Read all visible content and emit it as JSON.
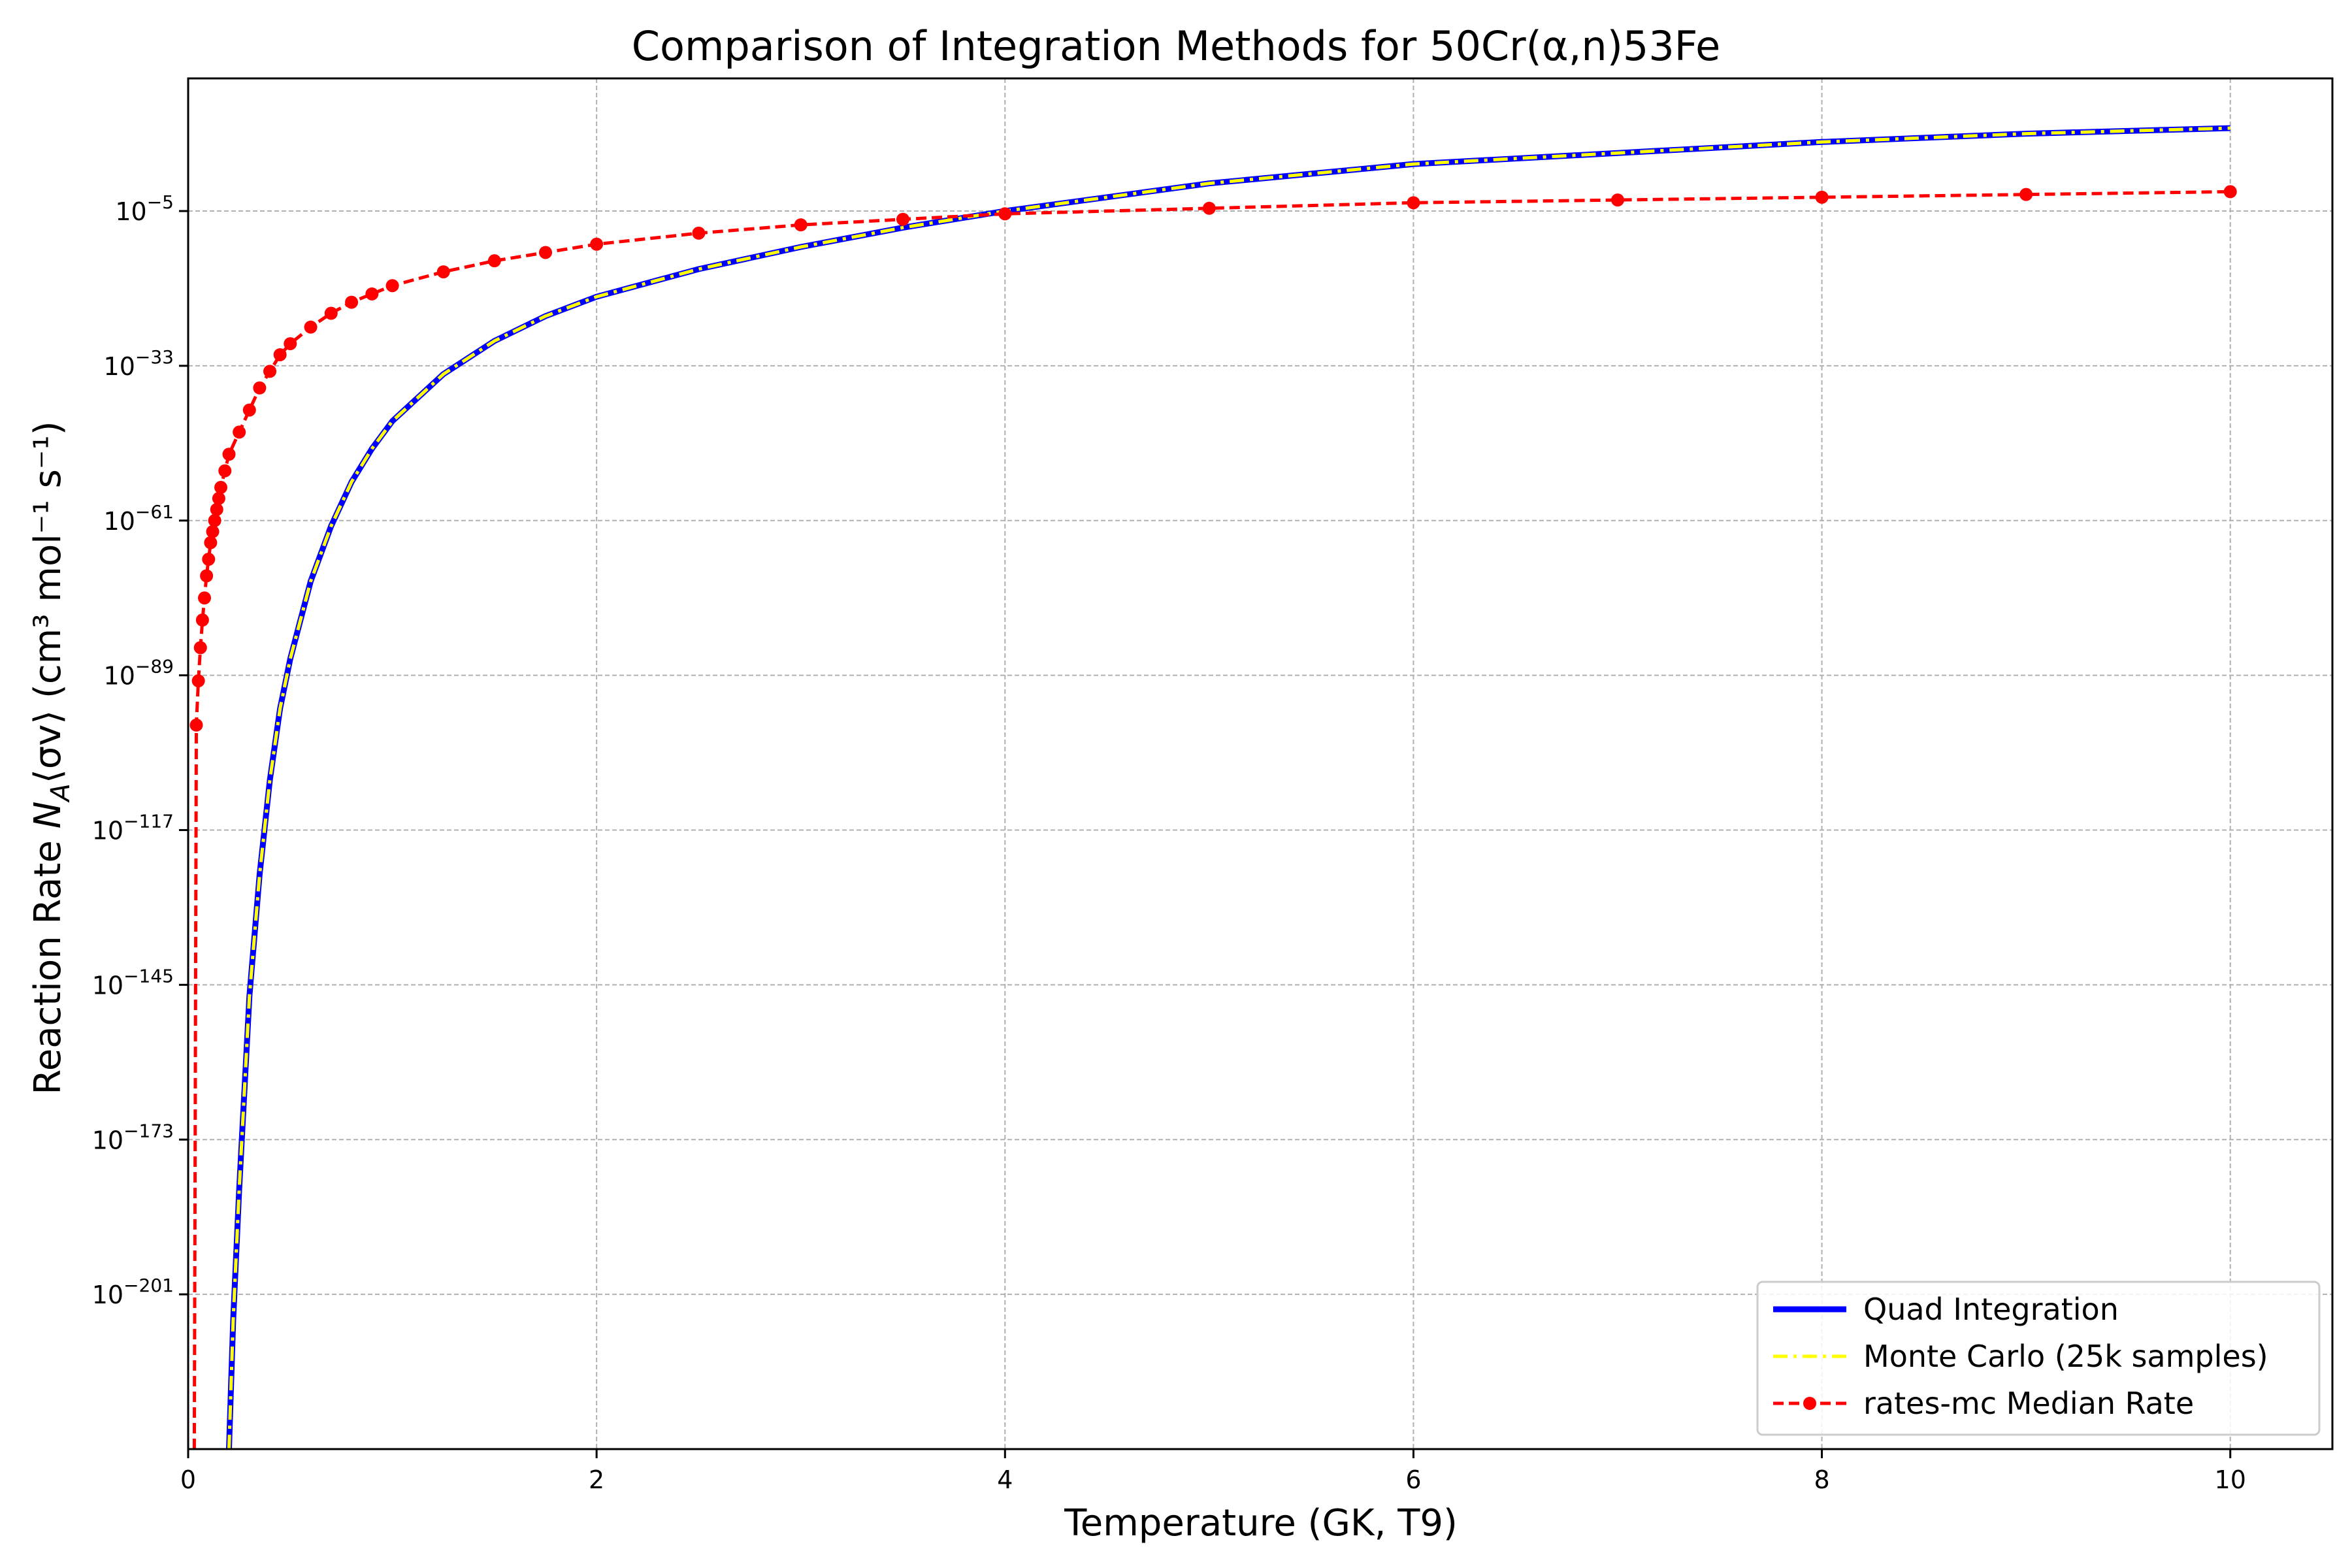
{
  "chart_data": {
    "type": "line",
    "title": "Comparison of Integration Methods for 50Cr(α,n)53Fe",
    "xlabel": "Temperature (GK, T9)",
    "ylabel": "Reaction Rate N_A⟨σv⟩ (cm³ mol⁻¹ s⁻¹)",
    "ylabel_parts": {
      "prefix": "Reaction Rate ",
      "math_N": "N",
      "math_sub": "A",
      "math_sv": "⟨σv⟩",
      "suffix": " (cm³ mol⁻¹ s⁻¹)"
    },
    "xlim": [
      0,
      10.5
    ],
    "ylim_log10": [
      -229,
      19
    ],
    "yscale": "log",
    "grid": true,
    "legend_position": "lower-right",
    "x_ticks": [
      0,
      2,
      4,
      6,
      8,
      10
    ],
    "x_tick_labels": [
      "0",
      "2",
      "4",
      "6",
      "8",
      "10"
    ],
    "y_ticks_log10": [
      -5,
      -33,
      -61,
      -89,
      -117,
      -145,
      -173,
      -201
    ],
    "y_tick_base": "10",
    "y_tick_exponents": [
      "−5",
      "−33",
      "−61",
      "−89",
      "−117",
      "−145",
      "−173",
      "−201"
    ],
    "series": [
      {
        "name": "Quad Integration",
        "color": "#0000ff",
        "style": "solid",
        "x": [
          0.2,
          0.22,
          0.25,
          0.3,
          0.35,
          0.4,
          0.45,
          0.5,
          0.6,
          0.7,
          0.8,
          0.9,
          1.0,
          1.25,
          1.5,
          1.75,
          2.0,
          2.5,
          3.0,
          3.5,
          4.0,
          5.0,
          6.0,
          7.0,
          8.0,
          9.0,
          10.0
        ],
        "log10_y": [
          -229,
          -206,
          -182,
          -147,
          -125,
          -108,
          -95,
          -86,
          -72,
          -62,
          -54,
          -48,
          -43,
          -34.5,
          -28.5,
          -24,
          -20.5,
          -15.5,
          -11.5,
          -8,
          -5,
          0,
          3.5,
          5.5,
          7.5,
          9,
          10
        ]
      },
      {
        "name": "Monte Carlo (25k samples)",
        "color": "#ffff00",
        "style": "dashdot",
        "x": [
          0.2,
          0.22,
          0.25,
          0.3,
          0.35,
          0.4,
          0.45,
          0.5,
          0.6,
          0.7,
          0.8,
          0.9,
          1.0,
          1.25,
          1.5,
          1.75,
          2.0,
          2.5,
          3.0,
          3.5,
          4.0,
          5.0,
          6.0,
          7.0,
          8.0,
          9.0,
          10.0
        ],
        "log10_y": [
          -229,
          -206,
          -182,
          -147,
          -125,
          -108,
          -95,
          -86,
          -72,
          -62,
          -54,
          -48,
          -43,
          -34.5,
          -28.5,
          -24,
          -20.5,
          -15.5,
          -11.5,
          -8,
          -5,
          0,
          3.5,
          5.5,
          7.5,
          9,
          10
        ]
      },
      {
        "name": "rates-mc Median Rate",
        "color": "#ff0000",
        "style": "dashed-markers",
        "x": [
          0.03,
          0.04,
          0.05,
          0.06,
          0.07,
          0.08,
          0.09,
          0.1,
          0.11,
          0.12,
          0.13,
          0.14,
          0.15,
          0.16,
          0.18,
          0.2,
          0.25,
          0.3,
          0.35,
          0.4,
          0.45,
          0.5,
          0.6,
          0.7,
          0.8,
          0.9,
          1.0,
          1.25,
          1.5,
          1.75,
          2.0,
          2.5,
          3.0,
          3.5,
          4.0,
          5.0,
          6.0,
          7.0,
          8.0,
          9.0,
          10.0
        ],
        "log10_y": [
          -229,
          -98,
          -90,
          -84,
          -79,
          -75,
          -71,
          -68,
          -65,
          -63,
          -61,
          -59,
          -57,
          -55,
          -52,
          -49,
          -45,
          -41,
          -37,
          -34,
          -31,
          -29,
          -26,
          -23.5,
          -21.5,
          -20,
          -18.5,
          -16,
          -14,
          -12.5,
          -11,
          -9,
          -7.5,
          -6.5,
          -5.5,
          -4.5,
          -3.5,
          -3,
          -2.5,
          -2,
          -1.5
        ],
        "marker_x": [
          0.04,
          0.05,
          0.06,
          0.07,
          0.08,
          0.09,
          0.1,
          0.11,
          0.12,
          0.13,
          0.14,
          0.15,
          0.16,
          0.18,
          0.2,
          0.25,
          0.3,
          0.35,
          0.4,
          0.45,
          0.5,
          0.6,
          0.7,
          0.8,
          0.9,
          1.0,
          1.25,
          1.5,
          1.75,
          2.0,
          2.5,
          3.0,
          3.5,
          4.0,
          5.0,
          6.0,
          7.0,
          8.0,
          9.0,
          10.0
        ],
        "marker_log10_y": [
          -98,
          -90,
          -84,
          -79,
          -75,
          -71,
          -68,
          -65,
          -63,
          -61,
          -59,
          -57,
          -55,
          -52,
          -49,
          -45,
          -41,
          -37,
          -34,
          -31,
          -29,
          -26,
          -23.5,
          -21.5,
          -20,
          -18.5,
          -16,
          -14,
          -12.5,
          -11,
          -9,
          -7.5,
          -6.5,
          -5.5,
          -4.5,
          -3.5,
          -3,
          -2.5,
          -2,
          -1.5
        ]
      }
    ]
  }
}
